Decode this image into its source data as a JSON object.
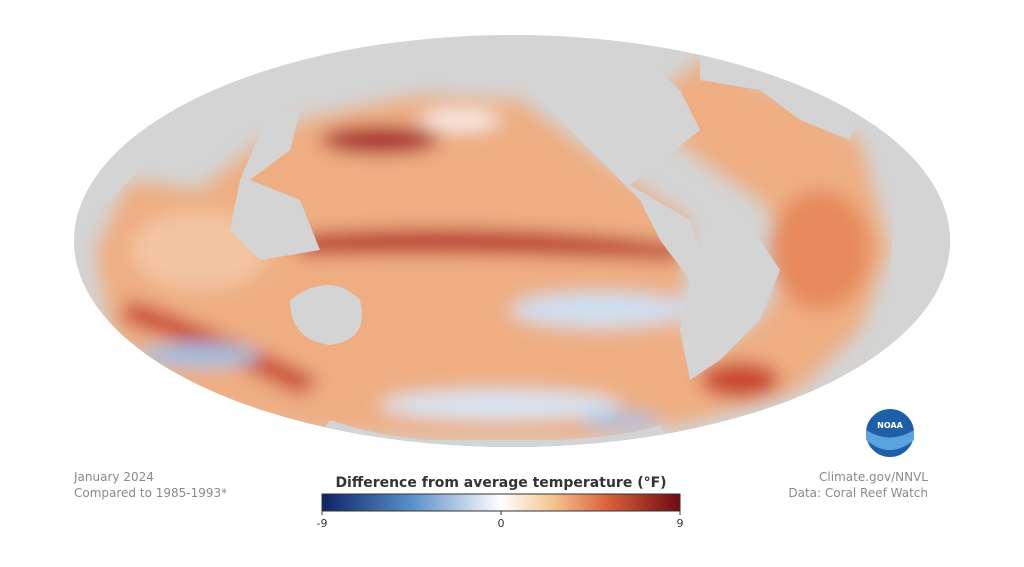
{
  "notes": {
    "date": "January 2024",
    "baseline": "Compared to 1985-1993*"
  },
  "credits": {
    "source": "Climate.gov/NNVL",
    "data": "Data: Coral Reef Watch"
  },
  "logo": {
    "text": "NOAA"
  },
  "legend": {
    "title": "Difference from average temperature (°F)",
    "range": [
      -9,
      9
    ],
    "ticks": [
      -9,
      0,
      9
    ]
  }
}
